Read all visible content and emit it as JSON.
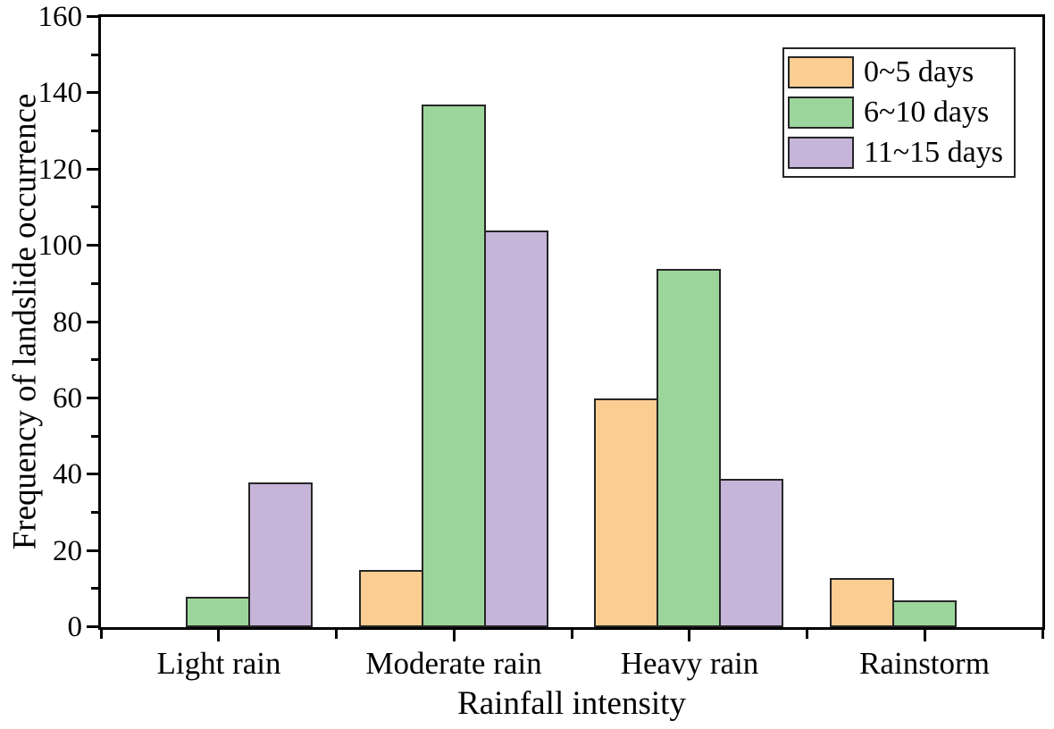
{
  "chart_data": {
    "type": "bar",
    "title": "",
    "xlabel": "Rainfall intensity",
    "ylabel": "Frequency of landslide occurrence",
    "categories": [
      "Light rain",
      "Moderate rain",
      "Heavy rain",
      "Rainstorm"
    ],
    "series": [
      {
        "name": "0~5 days",
        "color": "#FCCD92",
        "values": [
          0,
          15,
          60,
          13
        ]
      },
      {
        "name": "6~10 days",
        "color": "#9CD59B",
        "values": [
          8,
          137,
          94,
          7
        ]
      },
      {
        "name": "11~15 days",
        "color": "#C6B4D9",
        "values": [
          38,
          104,
          39,
          0
        ]
      }
    ],
    "ylim": [
      0,
      160
    ],
    "y_major_step": 20,
    "y_minor_step": 10,
    "y_ticks": [
      0,
      20,
      40,
      60,
      80,
      100,
      120,
      140,
      160
    ],
    "legend_position": "top-right",
    "grid": false,
    "axis_color": "#000000",
    "bar_edge_color": "#262626",
    "background_color": "#ffffff"
  }
}
